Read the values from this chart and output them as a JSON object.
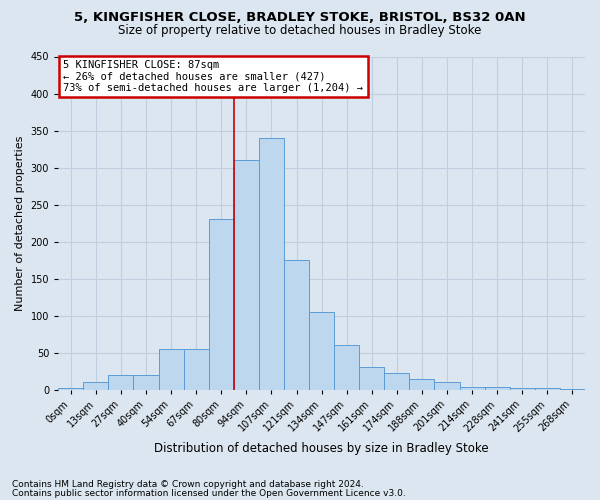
{
  "title1": "5, KINGFISHER CLOSE, BRADLEY STOKE, BRISTOL, BS32 0AN",
  "title2": "Size of property relative to detached houses in Bradley Stoke",
  "xlabel": "Distribution of detached houses by size in Bradley Stoke",
  "ylabel": "Number of detached properties",
  "bins": [
    "0sqm",
    "13sqm",
    "27sqm",
    "40sqm",
    "54sqm",
    "67sqm",
    "80sqm",
    "94sqm",
    "107sqm",
    "121sqm",
    "134sqm",
    "147sqm",
    "161sqm",
    "174sqm",
    "188sqm",
    "201sqm",
    "214sqm",
    "228sqm",
    "241sqm",
    "255sqm",
    "268sqm"
  ],
  "values": [
    2,
    10,
    20,
    20,
    55,
    55,
    230,
    310,
    340,
    175,
    105,
    60,
    30,
    22,
    15,
    10,
    3,
    3,
    2,
    2,
    1
  ],
  "bar_color": "#bdd7ee",
  "bar_edge_color": "#5b9bd5",
  "annotation_text1": "5 KINGFISHER CLOSE: 87sqm",
  "annotation_text2": "← 26% of detached houses are smaller (427)",
  "annotation_text3": "73% of semi-detached houses are larger (1,204) →",
  "annotation_box_facecolor": "#ffffff",
  "annotation_box_edgecolor": "#cc0000",
  "footnote1": "Contains HM Land Registry data © Crown copyright and database right 2024.",
  "footnote2": "Contains public sector information licensed under the Open Government Licence v3.0.",
  "ylim_max": 450,
  "yticks": [
    0,
    50,
    100,
    150,
    200,
    250,
    300,
    350,
    400,
    450
  ],
  "fig_bg": "#dce6f0",
  "plot_bg": "#dce6f0",
  "grid_color": "#c0cfe0",
  "vline_pos": 7.0,
  "vline_color": "#cc0000",
  "title1_fontsize": 9.5,
  "title2_fontsize": 8.5,
  "ylabel_fontsize": 8,
  "xlabel_fontsize": 8.5,
  "tick_fontsize": 7,
  "annot_fontsize": 7.5,
  "footnote_fontsize": 6.5
}
